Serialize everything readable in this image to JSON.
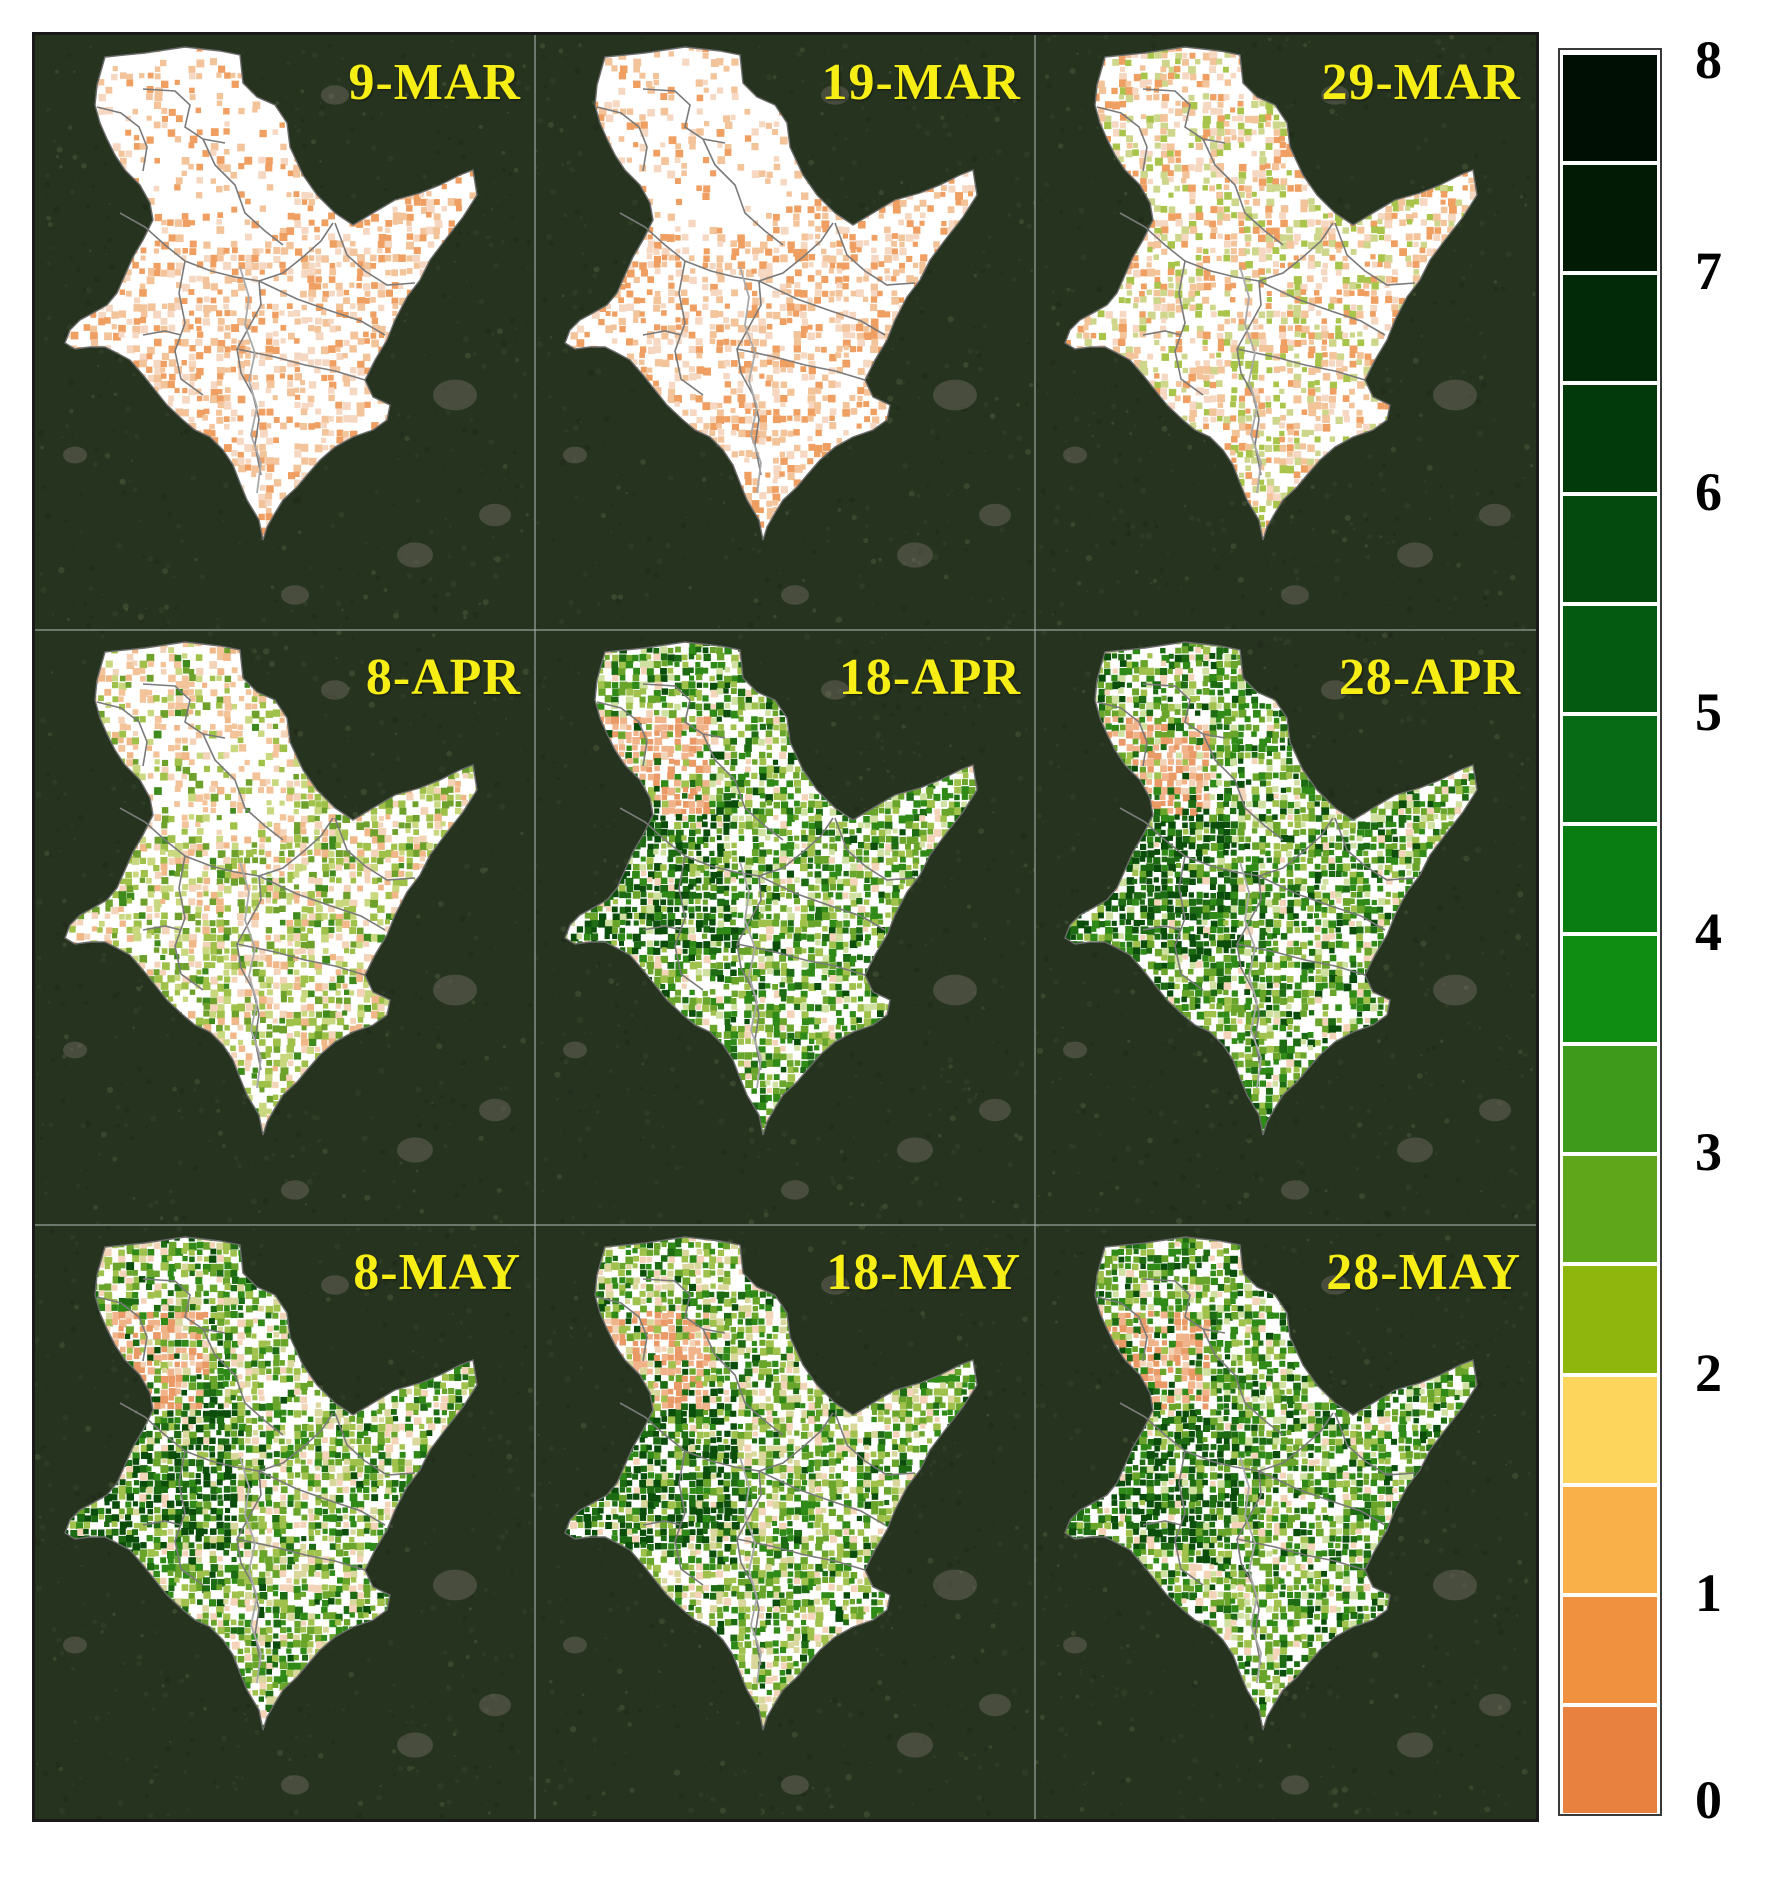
{
  "panels": [
    {
      "date": "9-MAR",
      "stage": 0
    },
    {
      "date": "19-MAR",
      "stage": 1
    },
    {
      "date": "29-MAR",
      "stage": 2
    },
    {
      "date": "8-APR",
      "stage": 3
    },
    {
      "date": "18-APR",
      "stage": 4
    },
    {
      "date": "28-APR",
      "stage": 5
    },
    {
      "date": "8-MAY",
      "stage": 6
    },
    {
      "date": "18-MAY",
      "stage": 6
    },
    {
      "date": "28-MAY",
      "stage": 5
    }
  ],
  "legend": {
    "ticks": [
      "8",
      "7",
      "6",
      "5",
      "4",
      "3",
      "2",
      "1",
      "0"
    ],
    "range": [
      0,
      8
    ],
    "colors": [
      "#e8813f",
      "#f0913f",
      "#f9b048",
      "#fdd45c",
      "#8fb60c",
      "#5fa61a",
      "#3d9a1a",
      "#0f8c12",
      "#097d12",
      "#076a14",
      "#055a12",
      "#044a0f",
      "#033a0b",
      "#022a08",
      "#011b05",
      "#000f03"
    ]
  },
  "colors": {
    "background": "#26331f",
    "region_fill": "#ffffff",
    "boundary": "#7a7a7a",
    "label": "#f7ee16"
  }
}
